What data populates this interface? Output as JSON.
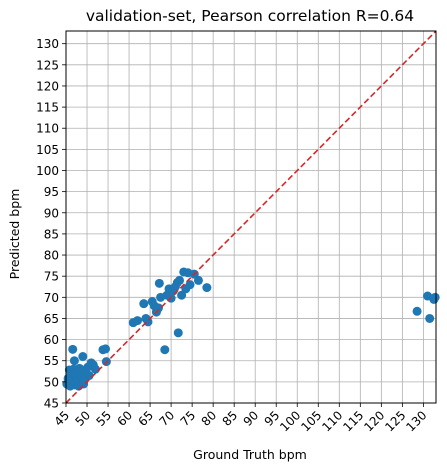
{
  "chart_data": {
    "type": "scatter",
    "title": "validation-set, Pearson correlation R=0.64",
    "xlabel": "Ground Truth bpm",
    "ylabel": "Predicted bpm",
    "xlim": [
      45,
      133
    ],
    "ylim": [
      45,
      133
    ],
    "x_ticks": [
      45,
      50,
      55,
      60,
      65,
      70,
      75,
      80,
      85,
      90,
      95,
      100,
      105,
      110,
      115,
      120,
      125,
      130
    ],
    "y_ticks": [
      45,
      50,
      55,
      60,
      65,
      70,
      75,
      80,
      85,
      90,
      95,
      100,
      105,
      110,
      115,
      120,
      125,
      130
    ],
    "grid": true,
    "reference_line": {
      "x": [
        45,
        133
      ],
      "y": [
        45,
        133
      ],
      "style": "dashed",
      "color": "#d62728"
    },
    "series": [
      {
        "color": "#1f77b4",
        "points": [
          [
            45.2,
            49.5
          ],
          [
            45.5,
            50.8
          ],
          [
            45.8,
            52.8
          ],
          [
            46.0,
            49.0
          ],
          [
            46.2,
            51.5
          ],
          [
            46.5,
            50.2
          ],
          [
            46.8,
            53.0
          ],
          [
            47.0,
            49.3
          ],
          [
            47.2,
            52.2
          ],
          [
            47.5,
            50.5
          ],
          [
            47.8,
            51.8
          ],
          [
            48.0,
            49.0
          ],
          [
            48.2,
            53.2
          ],
          [
            48.5,
            50.0
          ],
          [
            48.8,
            52.5
          ],
          [
            49.0,
            51.0
          ],
          [
            49.2,
            49.5
          ],
          [
            49.5,
            50.8
          ],
          [
            49.8,
            52.0
          ],
          [
            50.2,
            53.5
          ],
          [
            50.5,
            51.5
          ],
          [
            51.0,
            54.5
          ],
          [
            51.5,
            54.0
          ],
          [
            52.0,
            53.0
          ],
          [
            46.6,
            57.7
          ],
          [
            49.0,
            56.0
          ],
          [
            47.0,
            55.0
          ],
          [
            53.8,
            57.6
          ],
          [
            54.4,
            57.8
          ],
          [
            54.6,
            54.8
          ],
          [
            61.0,
            64.0
          ],
          [
            62.0,
            64.5
          ],
          [
            63.5,
            68.5
          ],
          [
            64.0,
            65.0
          ],
          [
            64.5,
            64.2
          ],
          [
            65.5,
            69.0
          ],
          [
            66.0,
            68.0
          ],
          [
            66.5,
            66.5
          ],
          [
            67.0,
            67.5
          ],
          [
            67.2,
            73.3
          ],
          [
            67.5,
            70.0
          ],
          [
            68.5,
            57.6
          ],
          [
            69.0,
            70.5
          ],
          [
            69.5,
            72.0
          ],
          [
            70.0,
            69.8
          ],
          [
            70.5,
            71.5
          ],
          [
            71.0,
            72.5
          ],
          [
            71.5,
            73.5
          ],
          [
            71.7,
            61.6
          ],
          [
            72.0,
            74.0
          ],
          [
            72.5,
            70.5
          ],
          [
            73.0,
            76.0
          ],
          [
            73.5,
            72.0
          ],
          [
            74.0,
            75.8
          ],
          [
            74.5,
            73.0
          ],
          [
            75.5,
            75.5
          ],
          [
            76.5,
            74.0
          ],
          [
            78.5,
            72.3
          ],
          [
            128.5,
            66.7
          ],
          [
            131.0,
            70.3
          ],
          [
            131.5,
            65.0
          ],
          [
            132.5,
            69.5
          ],
          [
            132.8,
            70.0
          ]
        ]
      }
    ]
  }
}
